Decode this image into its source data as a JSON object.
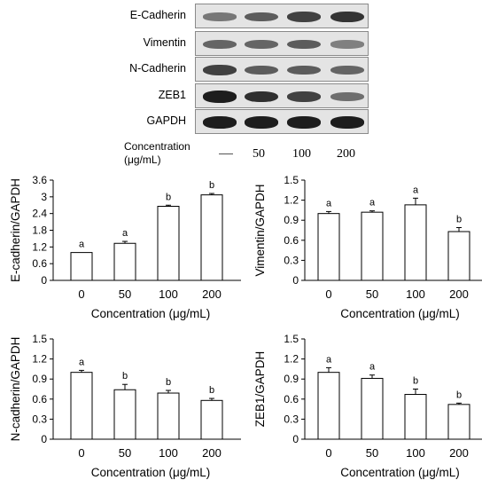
{
  "blots": {
    "rows": [
      {
        "label": "E-Cadherin",
        "intensity": [
          0.45,
          0.6,
          0.75,
          0.82
        ]
      },
      {
        "label": "Vimentin",
        "intensity": [
          0.55,
          0.55,
          0.6,
          0.4
        ]
      },
      {
        "label": "N-Cadherin",
        "intensity": [
          0.75,
          0.6,
          0.6,
          0.55
        ]
      },
      {
        "label": "ZEB1",
        "intensity": [
          0.95,
          0.85,
          0.75,
          0.5
        ]
      },
      {
        "label": "GAPDH",
        "intensity": [
          0.95,
          0.95,
          0.95,
          0.95
        ]
      }
    ],
    "concentration_label_line1": "Concentration",
    "concentration_label_line2": "(μg/mL)",
    "concentrations": [
      "50",
      "100",
      "200"
    ]
  },
  "chart_data": [
    {
      "type": "bar",
      "categories": [
        "0",
        "50",
        "100",
        "200"
      ],
      "values": [
        1.0,
        1.33,
        2.66,
        3.07
      ],
      "errors": [
        0.0,
        0.07,
        0.04,
        0.05
      ],
      "sig_labels": [
        "a",
        "a",
        "b",
        "b"
      ],
      "ylabel": "E-cadherin/GAPDH",
      "xlabel": "Concentration (μg/mL)",
      "ylim": [
        0,
        3.6
      ],
      "yticks": [
        "0",
        "0.6",
        "1.2",
        "1.8",
        "2.4",
        "3",
        "3.6"
      ]
    },
    {
      "type": "bar",
      "categories": [
        "0",
        "50",
        "100",
        "200"
      ],
      "values": [
        1.0,
        1.02,
        1.13,
        0.73
      ],
      "errors": [
        0.03,
        0.02,
        0.1,
        0.06
      ],
      "sig_labels": [
        "a",
        "a",
        "a",
        "b"
      ],
      "ylabel": "Vimentin/GAPDH",
      "xlabel": "Concentration (μg/mL)",
      "ylim": [
        0,
        1.5
      ],
      "yticks": [
        "0",
        "0.3",
        "0.6",
        "0.9",
        "1.2",
        "1.5"
      ]
    },
    {
      "type": "bar",
      "categories": [
        "0",
        "50",
        "100",
        "200"
      ],
      "values": [
        1.0,
        0.74,
        0.69,
        0.58
      ],
      "errors": [
        0.03,
        0.08,
        0.04,
        0.03
      ],
      "sig_labels": [
        "a",
        "b",
        "b",
        "b"
      ],
      "ylabel": "N-cadherin/GAPDH",
      "xlabel": "Concentration (μg/mL)",
      "ylim": [
        0,
        1.5
      ],
      "yticks": [
        "0",
        "0.3",
        "0.6",
        "0.9",
        "1.2",
        "1.5"
      ]
    },
    {
      "type": "bar",
      "categories": [
        "0",
        "50",
        "100",
        "200"
      ],
      "values": [
        1.0,
        0.91,
        0.67,
        0.52
      ],
      "errors": [
        0.07,
        0.05,
        0.08,
        0.02
      ],
      "sig_labels": [
        "a",
        "a",
        "b",
        "b"
      ],
      "ylabel": "ZEB1/GAPDH",
      "xlabel": "Concentration (μg/mL)",
      "ylim": [
        0,
        1.5
      ],
      "yticks": [
        "0",
        "0.3",
        "0.6",
        "0.9",
        "1.2",
        "1.5"
      ]
    }
  ]
}
